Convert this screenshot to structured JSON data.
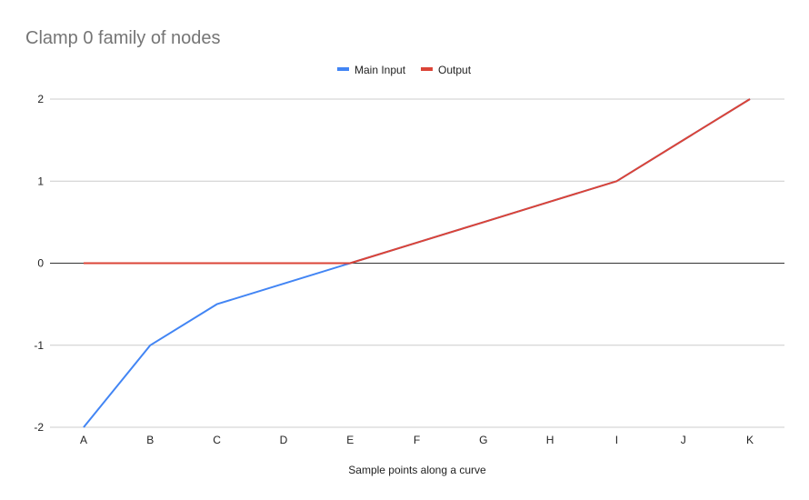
{
  "chart_data": {
    "type": "line",
    "title": "Clamp 0 family of nodes",
    "xlabel": "Sample points along a curve",
    "ylabel": "",
    "categories": [
      "A",
      "B",
      "C",
      "D",
      "E",
      "F",
      "G",
      "H",
      "I",
      "J",
      "K"
    ],
    "ylim": [
      -2,
      2
    ],
    "yticks": [
      -2,
      -1,
      0,
      1,
      2
    ],
    "grid": true,
    "legend_position": "top",
    "series": [
      {
        "name": "Main Input",
        "color": "#4285f4",
        "values": [
          -2,
          -1,
          -0.5,
          -0.25,
          0,
          0.25,
          0.5,
          0.75,
          1,
          1.5,
          2
        ]
      },
      {
        "name": "Output",
        "color": "#db4437",
        "values": [
          0,
          0,
          0,
          0,
          0,
          0.25,
          0.5,
          0.75,
          1,
          1.5,
          2
        ]
      }
    ]
  }
}
